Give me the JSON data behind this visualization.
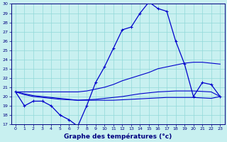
{
  "xlabel": "Graphe des températures (°c)",
  "bg_color": "#c8f0f0",
  "line_color": "#0000cc",
  "ylim": [
    17,
    30
  ],
  "xlim": [
    -0.5,
    23.5
  ],
  "yticks": [
    17,
    18,
    19,
    20,
    21,
    22,
    23,
    24,
    25,
    26,
    27,
    28,
    29,
    30
  ],
  "xticks": [
    0,
    1,
    2,
    3,
    4,
    5,
    6,
    7,
    8,
    9,
    10,
    11,
    12,
    13,
    14,
    15,
    16,
    17,
    18,
    19,
    20,
    21,
    22,
    23
  ],
  "curve_temp": [
    20.5,
    19.0,
    19.5,
    19.5,
    19.0,
    18.0,
    17.5,
    16.8,
    19.0,
    21.5,
    23.2,
    25.2,
    27.2,
    27.5,
    29.0,
    30.2,
    29.5,
    29.2,
    26.0,
    23.5,
    20.0,
    21.5,
    21.3,
    20.0
  ],
  "curve_high": [
    20.5,
    20.5,
    20.5,
    20.5,
    20.5,
    20.5,
    20.5,
    20.5,
    20.6,
    20.8,
    21.0,
    21.3,
    21.7,
    22.0,
    22.3,
    22.6,
    23.0,
    23.2,
    23.4,
    23.6,
    23.7,
    23.7,
    23.6,
    23.5
  ],
  "curve_avg": [
    20.5,
    20.3,
    20.1,
    20.0,
    19.9,
    19.8,
    19.7,
    19.6,
    19.65,
    19.7,
    19.8,
    19.9,
    20.0,
    20.15,
    20.3,
    20.4,
    20.5,
    20.55,
    20.6,
    20.6,
    20.6,
    20.55,
    20.5,
    20.0
  ],
  "curve_low": [
    20.5,
    20.2,
    20.0,
    19.9,
    19.8,
    19.7,
    19.65,
    19.6,
    19.6,
    19.6,
    19.6,
    19.6,
    19.65,
    19.7,
    19.75,
    19.8,
    19.85,
    19.9,
    19.9,
    19.9,
    19.9,
    19.85,
    19.8,
    20.0
  ],
  "xlabel_fontsize": 6.5,
  "tick_fontsize": 4.5,
  "grid_color": "#90d8d8",
  "spine_color": "#000080"
}
